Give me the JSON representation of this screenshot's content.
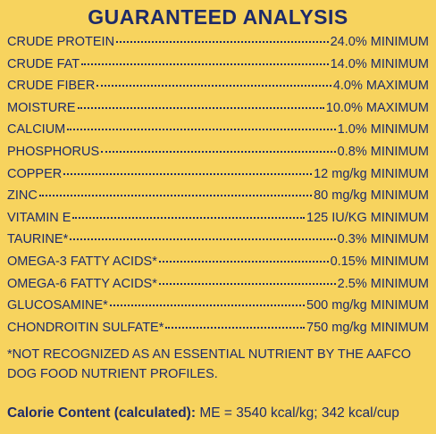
{
  "title": "GUARANTEED ANALYSIS",
  "rows": [
    {
      "name": "CRUDE PROTEIN",
      "value": "24.0% MINIMUM"
    },
    {
      "name": "CRUDE FAT",
      "value": "14.0% MINIMUM"
    },
    {
      "name": "CRUDE FIBER",
      "value": "4.0% MAXIMUM"
    },
    {
      "name": "MOISTURE",
      "value": "10.0% MAXIMUM"
    },
    {
      "name": "CALCIUM",
      "value": "1.0% MINIMUM"
    },
    {
      "name": "PHOSPHORUS",
      "value": "0.8% MINIMUM"
    },
    {
      "name": "COPPER",
      "value": "12 mg/kg MINIMUM"
    },
    {
      "name": "ZINC",
      "value": "80 mg/kg MINIMUM"
    },
    {
      "name": "VITAMIN E",
      "value": "125 IU/KG MINIMUM"
    },
    {
      "name": "TAURINE*",
      "value": "0.3% MINIMUM"
    },
    {
      "name": "OMEGA-3 FATTY ACIDS*",
      "value": "0.15% MINIMUM"
    },
    {
      "name": "OMEGA-6 FATTY ACIDS*",
      "value": "2.5% MINIMUM"
    },
    {
      "name": "GLUCOSAMINE*",
      "value": "500 mg/kg MINIMUM"
    },
    {
      "name": "CHONDROITIN SULFATE*",
      "value": "750 mg/kg MINIMUM"
    }
  ],
  "footnote": "*NOT RECOGNIZED AS AN ESSENTIAL NUTRIENT BY THE AAFCO DOG FOOD NUTRIENT PROFILES.",
  "calorie": {
    "label": "Calorie Content (calculated):",
    "value": "ME = 3540 kcal/kg; 342 kcal/cup"
  }
}
